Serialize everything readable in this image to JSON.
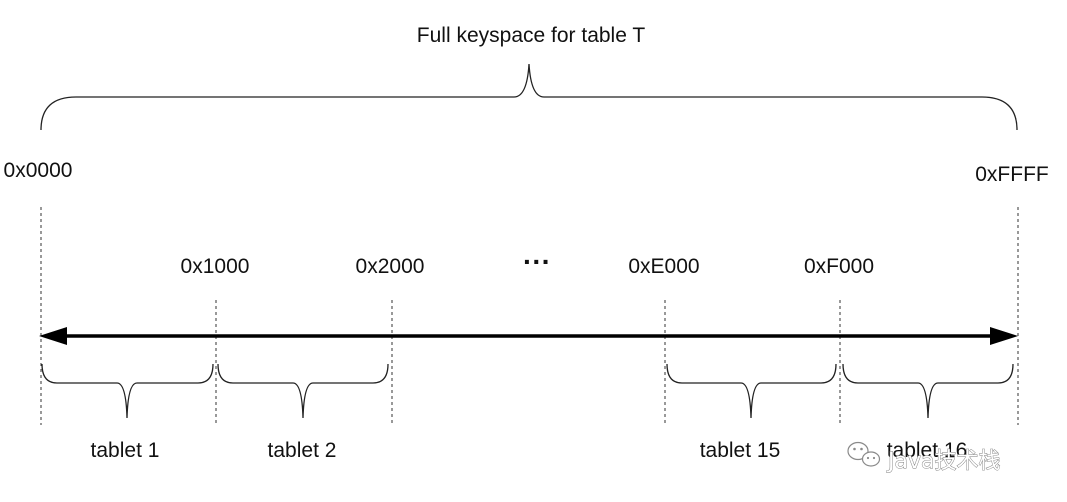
{
  "title": "Full keyspace for table T",
  "range_start": "0x0000",
  "range_end": "0xFFFF",
  "split_keys": [
    "0x1000",
    "0x2000",
    "0xE000",
    "0xF000"
  ],
  "ellipsis": "···",
  "tablets": [
    "tablet 1",
    "tablet 2",
    "tablet 15",
    "tablet 16"
  ],
  "watermark": "Java技术栈",
  "watermark_icon": "wechat-icon"
}
